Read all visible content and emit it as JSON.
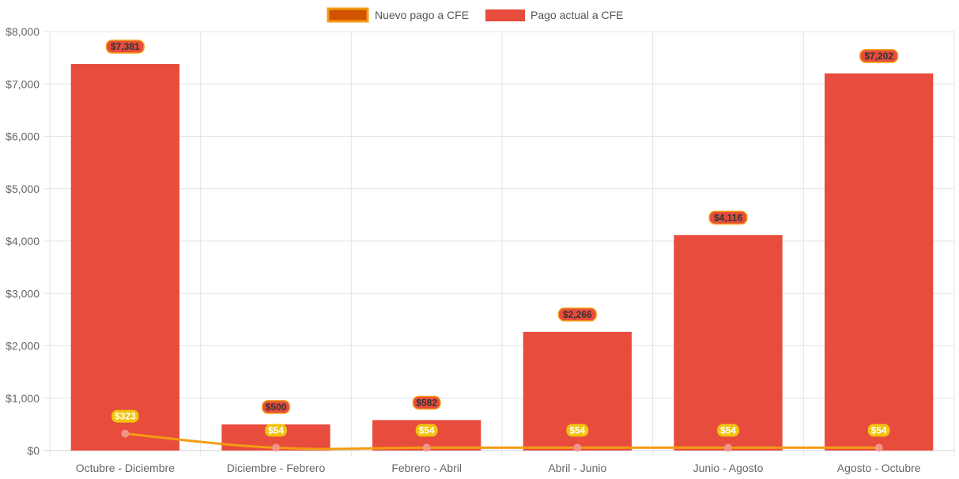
{
  "chart_data": {
    "type": "bar",
    "categories": [
      "Octubre - Diciembre",
      "Diciembre - Febrero",
      "Febrero - Abril",
      "Abril - Junio",
      "Junio - Agosto",
      "Agosto - Octubre"
    ],
    "series": [
      {
        "name": "Pago actual a CFE",
        "type": "bar",
        "values": [
          7381,
          500,
          582,
          2266,
          4116,
          7202
        ],
        "labels": [
          "$7,381",
          "$500",
          "$582",
          "$2,266",
          "$4,116",
          "$7,202"
        ],
        "color": "#e74c3c",
        "label_bg": "#e74c3c",
        "label_border": "#f39c12"
      },
      {
        "name": "Nuevo pago a CFE",
        "type": "line",
        "values": [
          323,
          54,
          54,
          54,
          54,
          54
        ],
        "labels": [
          "$323",
          "$54",
          "$54",
          "$54",
          "$54",
          "$54"
        ],
        "color": "#f39c12",
        "point_color": "#f1948a",
        "label_bg": "#f1c40f",
        "legend_fill": "#d35400"
      }
    ],
    "yticks": [
      "$0",
      "$1,000",
      "$2,000",
      "$3,000",
      "$4,000",
      "$5,000",
      "$6,000",
      "$7,000",
      "$8,000"
    ],
    "ylim": [
      0,
      8000
    ],
    "title": "",
    "xlabel": "",
    "ylabel": "",
    "grid": true,
    "legend_position": "top"
  }
}
